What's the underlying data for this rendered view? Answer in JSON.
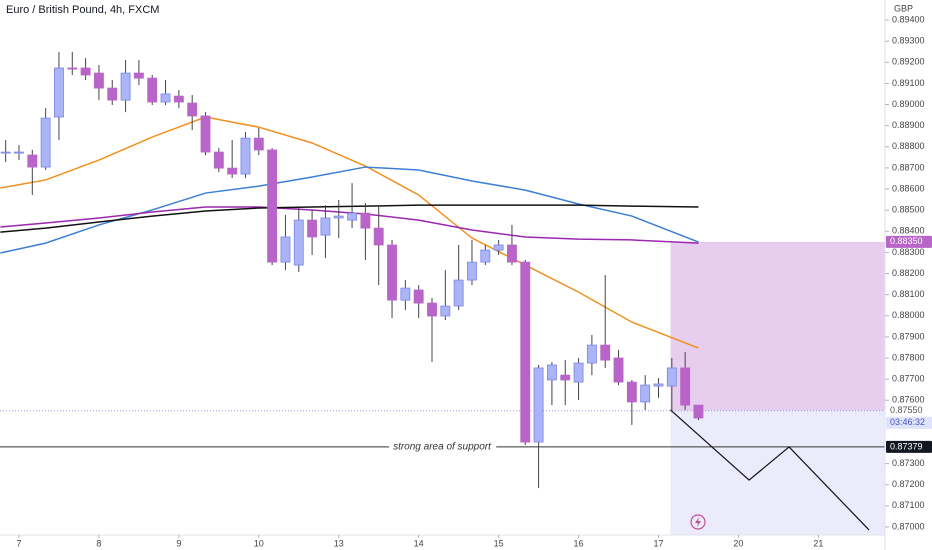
{
  "chart_data": {
    "type": "candlestick",
    "title": "Euro / British Pound, 4h, FXCM",
    "y_axis_label": "GBP",
    "bull_color": "#aab4f7",
    "bull_border": "#7b86e6",
    "bear_color": "#b864c8",
    "x": [
      -1,
      0,
      1,
      2,
      3,
      4,
      5,
      6,
      7,
      8,
      9,
      10,
      11,
      12,
      13,
      14,
      15,
      16,
      17,
      18,
      19,
      20,
      21,
      22,
      23,
      24,
      25,
      26,
      27,
      28,
      29,
      30,
      31,
      32,
      33,
      34,
      35,
      36,
      37,
      38,
      39,
      40,
      41,
      42,
      43,
      44,
      45,
      46,
      47,
      48,
      49,
      50,
      51
    ],
    "open": [
      0.88775,
      0.8877,
      0.88761,
      0.88704,
      0.88941,
      0.89173,
      0.89173,
      0.89149,
      0.89078,
      0.89021,
      0.89149,
      0.89125,
      0.89012,
      0.8904,
      0.89007,
      0.88946,
      0.88775,
      0.88699,
      0.88671,
      0.88841,
      0.88785,
      0.88254,
      0.8824,
      0.88453,
      0.88382,
      0.88463,
      0.88453,
      0.88486,
      0.88415,
      0.88335,
      0.88074,
      0.88122,
      0.8806,
      0.87999,
      0.88046,
      0.88169,
      0.88254,
      0.88311,
      0.88335,
      0.88254,
      0.87402,
      0.87696,
      0.87719,
      0.87686,
      0.87776,
      0.87861,
      0.878,
      0.87686,
      0.87592,
      0.87667,
      0.87667,
      0.87753,
      0.87577
    ],
    "high": [
      0.88832,
      0.88808,
      0.88785,
      0.88983,
      0.89249,
      0.89249,
      0.8922,
      0.89187,
      0.89116,
      0.89211,
      0.89211,
      0.8914,
      0.89116,
      0.89069,
      0.89045,
      0.88964,
      0.88794,
      0.88832,
      0.8887,
      0.88889,
      0.88794,
      0.88477,
      0.8851,
      0.88501,
      0.88524,
      0.88548,
      0.88628,
      0.88534,
      0.88524,
      0.88359,
      0.88169,
      0.88145,
      0.88084,
      0.88216,
      0.88335,
      0.88359,
      0.88335,
      0.88359,
      0.8843,
      0.88264,
      0.87767,
      0.87781,
      0.8779,
      0.878,
      0.87909,
      0.88193,
      0.87838,
      0.87696,
      0.87719,
      0.87705,
      0.878,
      0.87828,
      0.87577
    ],
    "low": [
      0.88728,
      0.88737,
      0.88572,
      0.8869,
      0.88832,
      0.8914,
      0.89116,
      0.89021,
      0.88998,
      0.88964,
      0.89092,
      0.88998,
      0.88998,
      0.88983,
      0.88879,
      0.88761,
      0.8868,
      0.88652,
      0.88652,
      0.88761,
      0.8824,
      0.88216,
      0.88207,
      0.88288,
      0.88273,
      0.88368,
      0.88415,
      0.88264,
      0.88145,
      0.87989,
      0.88027,
      0.87989,
      0.87781,
      0.8798,
      0.88027,
      0.88145,
      0.8824,
      0.88288,
      0.8824,
      0.87388,
      0.87184,
      0.87577,
      0.87577,
      0.87601,
      0.87719,
      0.87753,
      0.87672,
      0.87483,
      0.87554,
      0.87611,
      0.87544,
      0.87554,
      0.87506
    ],
    "close": [
      0.88775,
      0.88775,
      0.88704,
      0.88936,
      0.89173,
      0.89168,
      0.8914,
      0.89078,
      0.89021,
      0.89149,
      0.89125,
      0.89012,
      0.8905,
      0.89012,
      0.88946,
      0.88775,
      0.88699,
      0.88671,
      0.88841,
      0.88785,
      0.88254,
      0.88373,
      0.88453,
      0.88373,
      0.88463,
      0.88472,
      0.88486,
      0.88415,
      0.88335,
      0.88074,
      0.88131,
      0.8806,
      0.87999,
      0.88046,
      0.88169,
      0.88254,
      0.88311,
      0.88335,
      0.88254,
      0.87402,
      0.87753,
      0.87767,
      0.87696,
      0.87776,
      0.87861,
      0.8779,
      0.87686,
      0.87592,
      0.87672,
      0.87677,
      0.87753,
      0.87577,
      0.87516
    ],
    "series": [
      {
        "color": "#f0901e",
        "x": [
          -1.4,
          2,
          6,
          10,
          14,
          18,
          22,
          26,
          30,
          34,
          38,
          42,
          46,
          51
        ],
        "values": [
          0.88605,
          0.88643,
          0.88737,
          0.88846,
          0.88941,
          0.88893,
          0.88818,
          0.88709,
          0.88572,
          0.88368,
          0.8824,
          0.88112,
          0.8797,
          0.87847
        ]
      },
      {
        "color": "#3d7fd6",
        "x": [
          -1.4,
          2,
          6,
          10,
          14,
          18,
          22,
          26,
          30,
          34,
          38,
          42,
          46,
          51
        ],
        "values": [
          0.88297,
          0.88344,
          0.8843,
          0.88501,
          0.88581,
          0.88614,
          0.88657,
          0.88704,
          0.8869,
          0.88638,
          0.88595,
          0.88529,
          0.88472,
          0.88349
        ]
      },
      {
        "color": "#9c27b0",
        "x": [
          -1.4,
          2,
          6,
          10,
          14,
          18,
          22,
          26,
          30,
          34,
          38,
          42,
          46,
          51
        ],
        "values": [
          0.8842,
          0.88439,
          0.88463,
          0.88491,
          0.88515,
          0.88515,
          0.88501,
          0.88482,
          0.88453,
          0.88406,
          0.88373,
          0.88363,
          0.88359,
          0.88344
        ]
      },
      {
        "color": "#111111",
        "x": [
          -1.4,
          2,
          6,
          10,
          14,
          18,
          22,
          26,
          30,
          34,
          38,
          42,
          46,
          51
        ],
        "values": [
          0.88396,
          0.88415,
          0.88444,
          0.88472,
          0.88496,
          0.8851,
          0.88515,
          0.88519,
          0.88524,
          0.88524,
          0.88524,
          0.88524,
          0.88519,
          0.88515
        ]
      }
    ],
    "xlim": [
      -1.425,
      65.0
    ],
    "ylim": [
      0.86962,
      0.89495
    ],
    "xticks": [
      {
        "value": 0,
        "label": "7"
      },
      {
        "value": 6,
        "label": "8"
      },
      {
        "value": 12,
        "label": "9"
      },
      {
        "value": 18,
        "label": "10"
      },
      {
        "value": 24,
        "label": "13"
      },
      {
        "value": 30,
        "label": "14"
      },
      {
        "value": 36,
        "label": "15"
      },
      {
        "value": 42,
        "label": "16"
      },
      {
        "value": 48,
        "label": "17"
      },
      {
        "value": 54,
        "label": "20"
      },
      {
        "value": 60,
        "label": "21"
      }
    ],
    "yticks": [
      {
        "value": 0.894,
        "label": "0.89400"
      },
      {
        "value": 0.893,
        "label": "0.89300"
      },
      {
        "value": 0.892,
        "label": "0.89200"
      },
      {
        "value": 0.891,
        "label": "0.89100"
      },
      {
        "value": 0.89,
        "label": "0.89000"
      },
      {
        "value": 0.889,
        "label": "0.88900"
      },
      {
        "value": 0.888,
        "label": "0.88800"
      },
      {
        "value": 0.887,
        "label": "0.88700"
      },
      {
        "value": 0.886,
        "label": "0.88600"
      },
      {
        "value": 0.885,
        "label": "0.88500"
      },
      {
        "value": 0.884,
        "label": "0.88400"
      },
      {
        "value": 0.883,
        "label": "0.88300"
      },
      {
        "value": 0.882,
        "label": "0.88200"
      },
      {
        "value": 0.881,
        "label": "0.88100"
      },
      {
        "value": 0.88,
        "label": "0.88000"
      },
      {
        "value": 0.879,
        "label": "0.87900"
      },
      {
        "value": 0.878,
        "label": "0.87800"
      },
      {
        "value": 0.877,
        "label": "0.87700"
      },
      {
        "value": 0.876,
        "label": "0.87600"
      },
      {
        "value": 0.873,
        "label": "0.87300"
      },
      {
        "value": 0.872,
        "label": "0.87200"
      },
      {
        "value": 0.871,
        "label": "0.87100"
      },
      {
        "value": 0.87,
        "label": "0.87000"
      }
    ],
    "support": {
      "text": "strong area of support",
      "value": 0.87379,
      "label": "0.87379"
    },
    "last_price": {
      "value": 0.8755,
      "label": "0.87550",
      "countdown": "03:46:32"
    },
    "position": {
      "x_start": 48.9,
      "stop": 0.8835,
      "stop_label": "0.88350",
      "entry": 0.8755
    },
    "projection": {
      "x": [
        48.9,
        54.8,
        57.8,
        63.8
      ],
      "values": [
        0.87554,
        0.87222,
        0.87379,
        0.86986
      ]
    }
  }
}
